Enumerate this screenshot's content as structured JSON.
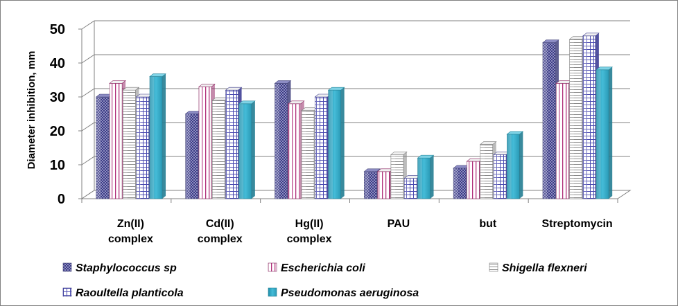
{
  "chart_data": {
    "type": "bar",
    "title": "",
    "xlabel": "",
    "ylabel": "Diameter inhibition, mm",
    "ylim": [
      0,
      50
    ],
    "yticks": [
      0,
      10,
      20,
      30,
      40,
      50
    ],
    "grid": true,
    "legend_position": "bottom",
    "categories": [
      [
        "Zn(II)",
        "complex"
      ],
      [
        "Cd(II)",
        "complex"
      ],
      [
        "Hg(II)",
        "complex"
      ],
      [
        "PAU"
      ],
      [
        "but"
      ],
      [
        "Streptomycin"
      ]
    ],
    "series": [
      {
        "name": "Staphylococcus sp",
        "values": [
          30,
          25,
          34,
          8,
          9,
          46
        ]
      },
      {
        "name": "Escherichia coli",
        "values": [
          34,
          33,
          28,
          8,
          11,
          34
        ]
      },
      {
        "name": "Shigella flexneri",
        "values": [
          32,
          29,
          26,
          13,
          16,
          47
        ]
      },
      {
        "name": "Raoultella planticola",
        "values": [
          30,
          32,
          30,
          6,
          13,
          48
        ]
      },
      {
        "name": "Pseudomonas aeruginosa",
        "values": [
          36,
          28,
          32,
          12,
          19,
          38
        ]
      }
    ]
  },
  "colors": {
    "staphylococcus": "#5a5a9c",
    "escherichia": "#b0307a",
    "shigella": "#9a9a9a",
    "raoultella": "#4a4ab0",
    "pseudomonas": "#2fa6c2",
    "grid": "#808080"
  }
}
